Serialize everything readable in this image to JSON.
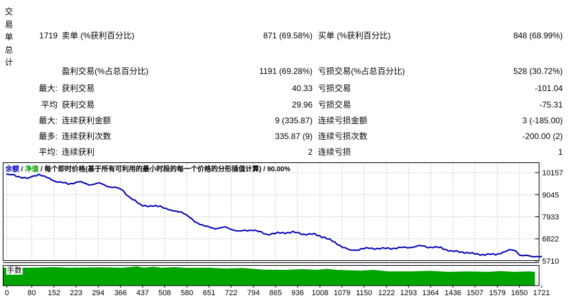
{
  "stats": {
    "row_header": "交易单总计",
    "rows": [
      {
        "prefix": "1719",
        "label1": "卖单 (%获利百分比)",
        "value1": "871 (69.58%)",
        "label2": "买单 (%获利百分比)",
        "value2": "848 (68.99%)"
      },
      {
        "prefix": "",
        "label1": "盈利交易(%占总百分比)",
        "value1": "1191 (69.28%)",
        "label2": "亏损交易(%占总百分比)",
        "value2": "528 (30.72%)"
      },
      {
        "prefix": "最大:",
        "label1": "获利交易",
        "value1": "40.33",
        "label2": "亏损交易",
        "value2": "-101.04"
      },
      {
        "prefix": "平均",
        "label1": "获利交易",
        "value1": "29.96",
        "label2": "亏损交易",
        "value2": "-75.31"
      },
      {
        "prefix": "最大:",
        "label1": "连续获利金额",
        "value1": "9 (335.87)",
        "label2": "连续亏损金额",
        "value2": "3 (-185.00)"
      },
      {
        "prefix": "最多:",
        "label1": "连续获利次数",
        "value1": "335.87 (9)",
        "label2": "连续亏损次数",
        "value2": "-200.00 (2)"
      },
      {
        "prefix": "平均:",
        "label1": "连续获利",
        "value1": "2",
        "label2": "连续亏损",
        "value2": "1"
      }
    ]
  },
  "chart_data": {
    "type": "line",
    "header": {
      "balance_label": "余额",
      "equity_label": "净值",
      "separator": " / ",
      "description": "每个即时价格(基于所有可利用的最小时段的每一个价格的分形插值计算)",
      "quality": "90.00%"
    },
    "lots_panel_label": "手数",
    "y_ticks": [
      10157,
      9045,
      7933,
      6822,
      5710
    ],
    "x_ticks": [
      0,
      80,
      152,
      223,
      294,
      366,
      437,
      508,
      580,
      651,
      722,
      794,
      865,
      936,
      1008,
      1079,
      1150,
      1222,
      1293,
      1364,
      1436,
      1507,
      1579,
      1650,
      1721
    ],
    "xlabel": "",
    "ylabel": "",
    "grid": true,
    "colors": {
      "balance_line": "#0000B4",
      "equity_label": "#00A000",
      "balance_label": "#0000C8",
      "lots_fill": "#00A400",
      "gridline": "#C9C9C9",
      "frame": "#000000"
    },
    "series": [
      {
        "name": "余额",
        "points": [
          [
            0,
            10080
          ],
          [
            22,
            10020
          ],
          [
            66,
            9860
          ],
          [
            88,
            9980
          ],
          [
            103,
            10090
          ],
          [
            121,
            9950
          ],
          [
            154,
            9740
          ],
          [
            198,
            9580
          ],
          [
            231,
            9700
          ],
          [
            264,
            9550
          ],
          [
            297,
            9620
          ],
          [
            330,
            9450
          ],
          [
            356,
            9380
          ],
          [
            374,
            9260
          ],
          [
            396,
            8900
          ],
          [
            429,
            8550
          ],
          [
            462,
            8450
          ],
          [
            495,
            8480
          ],
          [
            528,
            8230
          ],
          [
            561,
            8200
          ],
          [
            605,
            7700
          ],
          [
            638,
            7450
          ],
          [
            671,
            7350
          ],
          [
            704,
            7400
          ],
          [
            748,
            7200
          ],
          [
            792,
            7280
          ],
          [
            836,
            7050
          ],
          [
            880,
            7120
          ],
          [
            920,
            7160
          ],
          [
            957,
            7060
          ],
          [
            990,
            7050
          ],
          [
            1023,
            6900
          ],
          [
            1056,
            6640
          ],
          [
            1089,
            6350
          ],
          [
            1111,
            6230
          ],
          [
            1133,
            6300
          ],
          [
            1166,
            6350
          ],
          [
            1210,
            6330
          ],
          [
            1254,
            6360
          ],
          [
            1298,
            6400
          ],
          [
            1335,
            6470
          ],
          [
            1364,
            6400
          ],
          [
            1397,
            6380
          ],
          [
            1430,
            6200
          ],
          [
            1474,
            6150
          ],
          [
            1507,
            6060
          ],
          [
            1540,
            6030
          ],
          [
            1573,
            6040
          ],
          [
            1606,
            6180
          ],
          [
            1628,
            6280
          ],
          [
            1639,
            6240
          ],
          [
            1650,
            6000
          ],
          [
            1672,
            5970
          ],
          [
            1690,
            5950
          ],
          [
            1721,
            5935
          ]
        ]
      }
    ],
    "lots": {
      "name": "手数",
      "points": [
        [
          0,
          0.9
        ],
        [
          80,
          0.9
        ],
        [
          150,
          0.93
        ],
        [
          200,
          0.9
        ],
        [
          300,
          0.92
        ],
        [
          370,
          0.9
        ],
        [
          420,
          0.97
        ],
        [
          440,
          0.9
        ],
        [
          470,
          0.95
        ],
        [
          500,
          0.9
        ],
        [
          540,
          0.93
        ],
        [
          580,
          0.89
        ],
        [
          650,
          0.9
        ],
        [
          700,
          0.86
        ],
        [
          760,
          0.88
        ],
        [
          830,
          0.8
        ],
        [
          900,
          0.79
        ],
        [
          950,
          0.83
        ],
        [
          1000,
          0.79
        ],
        [
          1030,
          0.84
        ],
        [
          1060,
          0.79
        ],
        [
          1140,
          0.75
        ],
        [
          1180,
          0.79
        ],
        [
          1230,
          0.71
        ],
        [
          1300,
          0.71
        ],
        [
          1360,
          0.74
        ],
        [
          1420,
          0.69
        ],
        [
          1480,
          0.71
        ],
        [
          1550,
          0.69
        ],
        [
          1590,
          0.73
        ],
        [
          1630,
          0.69
        ],
        [
          1680,
          0.71
        ],
        [
          1715,
          0.69
        ]
      ]
    }
  }
}
